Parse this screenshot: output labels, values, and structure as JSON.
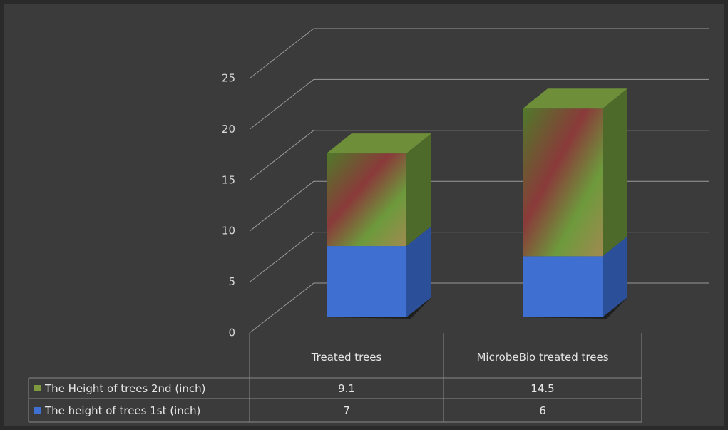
{
  "chart_data": {
    "type": "bar3d_stacked",
    "categories": [
      "Treated trees",
      "MicrobeBio treated trees"
    ],
    "series": [
      {
        "name": "The height of trees 1st (inch)",
        "color": "#3f6fd0",
        "values": [
          7,
          6
        ]
      },
      {
        "name": "The Height of trees 2nd (inch)",
        "color": "#7f9a3e",
        "values": [
          9.1,
          14.5
        ]
      }
    ],
    "ylim": [
      0,
      25
    ],
    "yticks": [
      0,
      5,
      10,
      15,
      20,
      25
    ],
    "grid": true,
    "data_table": true
  }
}
